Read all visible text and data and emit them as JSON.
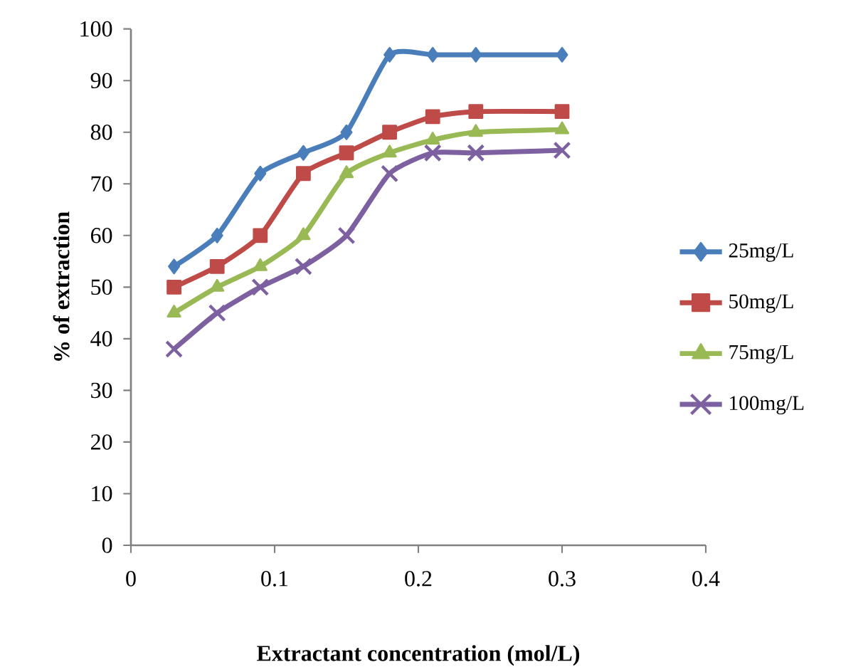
{
  "chart_data": {
    "type": "line",
    "xlabel": "Extractant concentration (mol/L)",
    "ylabel": "% of extraction",
    "x": [
      0.03,
      0.06,
      0.09,
      0.12,
      0.15,
      0.18,
      0.21,
      0.24,
      0.3
    ],
    "series": [
      {
        "name": "25mg/L",
        "color": "#4a7ebb",
        "marker": "diamond",
        "values": [
          54,
          60,
          72,
          76,
          80,
          95,
          95,
          95,
          95
        ]
      },
      {
        "name": "50mg/L",
        "color": "#be4b48",
        "marker": "square",
        "values": [
          50,
          54,
          60,
          72,
          76,
          80,
          83,
          84,
          84
        ]
      },
      {
        "name": "75mg/L",
        "color": "#98b954",
        "marker": "triangle",
        "values": [
          45,
          50,
          54,
          60,
          72,
          76,
          78.5,
          80,
          80.5
        ]
      },
      {
        "name": "100mg/L",
        "color": "#7d60a0",
        "marker": "cross",
        "values": [
          38,
          45,
          50,
          54,
          60,
          72,
          76,
          76,
          76.5
        ]
      }
    ],
    "xlim": [
      0,
      0.4
    ],
    "xticks": [
      0,
      0.1,
      0.2,
      0.3,
      0.4
    ],
    "ylim": [
      0,
      100
    ],
    "yticks": [
      0,
      10,
      20,
      30,
      40,
      50,
      60,
      70,
      80,
      90,
      100
    ],
    "grid": false,
    "legend": "right"
  }
}
